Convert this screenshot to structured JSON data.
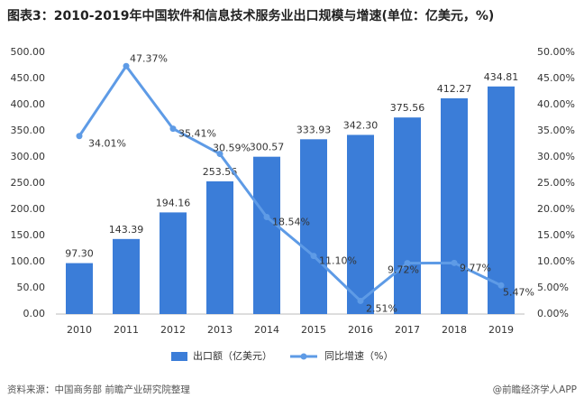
{
  "chart_data": {
    "type": "bar-line",
    "title": "图表3：2010-2019年中国软件和信息技术服务业出口规模与增速(单位：亿美元，%)",
    "categories": [
      "2010",
      "2011",
      "2012",
      "2013",
      "2014",
      "2015",
      "2016",
      "2017",
      "2018",
      "2019"
    ],
    "series": [
      {
        "name": "出口额（亿美元）",
        "type": "bar",
        "color": "#3b7dd8",
        "values": [
          97.3,
          143.39,
          194.16,
          253.56,
          300.57,
          333.93,
          342.3,
          375.56,
          412.27,
          434.81
        ],
        "value_labels": [
          "97.30",
          "143.39",
          "194.16",
          "253.56",
          "300.57",
          "333.93",
          "342.30",
          "375.56",
          "412.27",
          "434.81"
        ]
      },
      {
        "name": "同比增速（%）",
        "type": "line",
        "axis": "y2",
        "color": "#5e9be6",
        "values": [
          34.01,
          47.37,
          35.41,
          30.59,
          18.54,
          11.1,
          2.51,
          9.72,
          9.77,
          5.47
        ],
        "value_labels": [
          "34.01%",
          "47.37%",
          "35.41%",
          "30.59%",
          "18.54%",
          "11.10%",
          "2.51%",
          "9.72%",
          "9.77%",
          "5.47%"
        ]
      }
    ],
    "ylim": [
      0,
      500
    ],
    "yticks": [
      {
        "value": 0,
        "label": "0.00"
      },
      {
        "value": 50,
        "label": "50.00"
      },
      {
        "value": 100,
        "label": "100.00"
      },
      {
        "value": 150,
        "label": "150.00"
      },
      {
        "value": 200,
        "label": "200.00"
      },
      {
        "value": 250,
        "label": "250.00"
      },
      {
        "value": 300,
        "label": "300.00"
      },
      {
        "value": 350,
        "label": "350.00"
      },
      {
        "value": 400,
        "label": "400.00"
      },
      {
        "value": 450,
        "label": "450.00"
      },
      {
        "value": 500,
        "label": "500.00"
      }
    ],
    "y2lim": [
      0,
      50
    ],
    "y2ticks": [
      {
        "value": 0,
        "label": "0.00%"
      },
      {
        "value": 5,
        "label": "5.00%"
      },
      {
        "value": 10,
        "label": "10.00%"
      },
      {
        "value": 15,
        "label": "15.00%"
      },
      {
        "value": 20,
        "label": "20.00%"
      },
      {
        "value": 25,
        "label": "25.00%"
      },
      {
        "value": 30,
        "label": "30.00%"
      },
      {
        "value": 35,
        "label": "35.00%"
      },
      {
        "value": 40,
        "label": "40.00%"
      },
      {
        "value": 45,
        "label": "45.00%"
      },
      {
        "value": 50,
        "label": "50.00%"
      }
    ],
    "grid": false,
    "legend": "bottom",
    "source": "资料来源：中国商务部 前瞻产业研究院整理",
    "credit": "@前瞻经济学人APP"
  }
}
